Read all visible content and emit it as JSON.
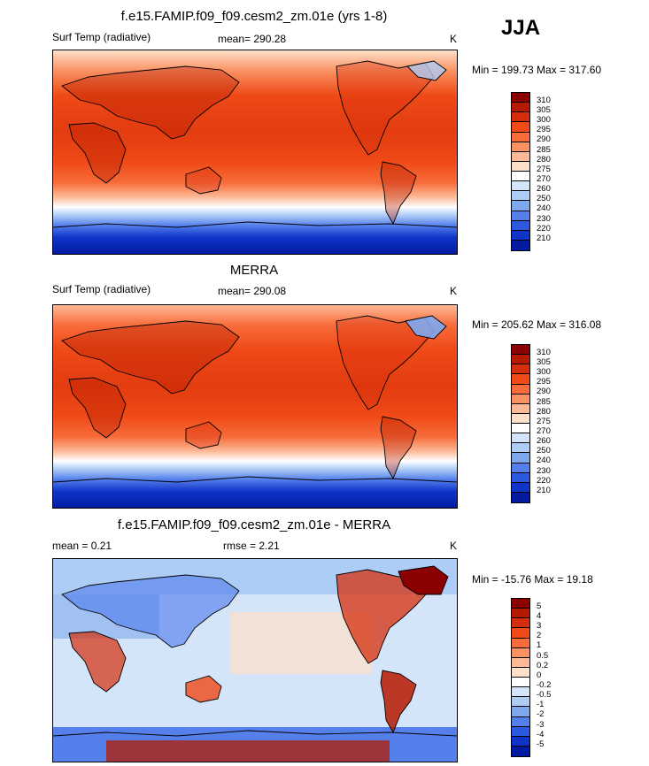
{
  "season": "JJA",
  "panels": [
    {
      "id": "model",
      "title": "f.e15.FAMIP.f09_f09.cesm2_zm.01e (yrs 1-8)",
      "left_label": "Surf Temp (radiative)",
      "center_label": "mean= 290.28",
      "units": "K",
      "minmax": "Min = 199.73 Max = 317.60",
      "colorbar_labels": [
        "310",
        "305",
        "300",
        "295",
        "290",
        "285",
        "280",
        "275",
        "270",
        "260",
        "250",
        "240",
        "230",
        "220",
        "210"
      ],
      "colorbar_colors": [
        "#8b0000",
        "#b51a00",
        "#d62e0c",
        "#ef4a17",
        "#f76c3a",
        "#fb9263",
        "#fdb896",
        "#fde0c8",
        "#ffffff",
        "#d5e5f9",
        "#aecdf6",
        "#7ea9ef",
        "#5580ec",
        "#2c59e0",
        "#1034c8",
        "#021aa0"
      ]
    },
    {
      "id": "obs",
      "title": "MERRA",
      "left_label": "Surf Temp (radiative)",
      "center_label": "mean= 290.08",
      "units": "K",
      "minmax": "Min = 205.62 Max = 316.08",
      "colorbar_labels": [
        "310",
        "305",
        "300",
        "295",
        "290",
        "285",
        "280",
        "275",
        "270",
        "260",
        "250",
        "240",
        "230",
        "220",
        "210"
      ],
      "colorbar_colors": [
        "#8b0000",
        "#b51a00",
        "#d62e0c",
        "#ef4a17",
        "#f76c3a",
        "#fb9263",
        "#fdb896",
        "#fde0c8",
        "#ffffff",
        "#d5e5f9",
        "#aecdf6",
        "#7ea9ef",
        "#5580ec",
        "#2c59e0",
        "#1034c8",
        "#021aa0"
      ]
    },
    {
      "id": "diff",
      "title": "f.e15.FAMIP.f09_f09.cesm2_zm.01e - MERRA",
      "left_label": "mean =   0.21",
      "center_label": "rmse =   2.21",
      "units": "K",
      "minmax": "Min = -15.76 Max =  19.18",
      "colorbar_labels": [
        "5",
        "4",
        "3",
        "2",
        "1",
        "0.5",
        "0.2",
        "0",
        "-0.2",
        "-0.5",
        "-1",
        "-2",
        "-3",
        "-4",
        "-5"
      ],
      "colorbar_colors": [
        "#8b0000",
        "#b51a00",
        "#d62e0c",
        "#ef4a17",
        "#f76c3a",
        "#fb9263",
        "#fdb896",
        "#fde0c8",
        "#ffffff",
        "#d5e5f9",
        "#aecdf6",
        "#7ea9ef",
        "#5580ec",
        "#2c59e0",
        "#1034c8",
        "#021aa0"
      ]
    }
  ]
}
